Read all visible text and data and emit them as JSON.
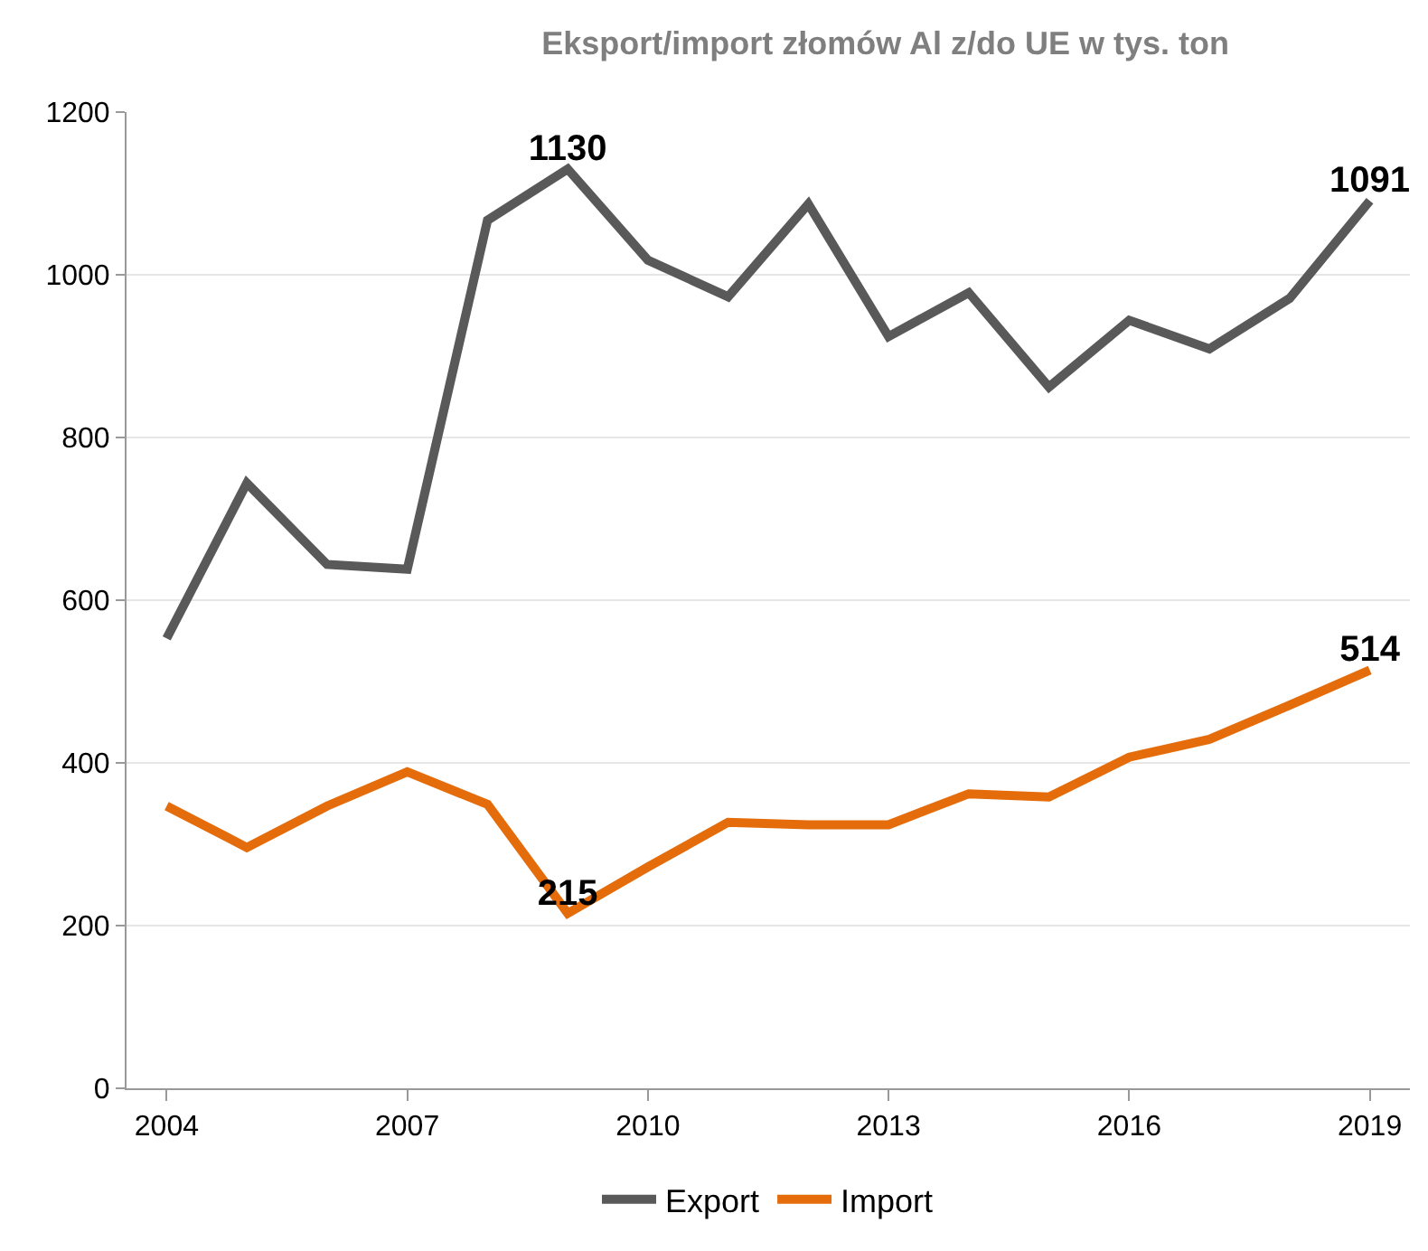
{
  "chart_data": {
    "type": "line",
    "title": "Eksport/import złomów Al z/do UE w tys. ton",
    "x": [
      2004,
      2005,
      2006,
      2007,
      2008,
      2009,
      2010,
      2011,
      2012,
      2013,
      2014,
      2015,
      2016,
      2017,
      2018,
      2019
    ],
    "series": [
      {
        "name": "Export",
        "color": "#595959",
        "values": [
          553,
          744,
          644,
          638,
          1067,
          1130,
          1018,
          973,
          1087,
          924,
          978,
          862,
          944,
          909,
          971,
          1091
        ],
        "value_labels": [
          null,
          null,
          null,
          null,
          null,
          "1130",
          null,
          null,
          null,
          null,
          null,
          null,
          null,
          null,
          null,
          "1091"
        ]
      },
      {
        "name": "Import",
        "color": "#e46c0a",
        "values": [
          347,
          296,
          347,
          389,
          349,
          215,
          272,
          327,
          324,
          324,
          362,
          358,
          407,
          429,
          471,
          514
        ],
        "value_labels": [
          null,
          null,
          null,
          null,
          null,
          "215",
          null,
          null,
          null,
          null,
          null,
          null,
          null,
          null,
          null,
          "514"
        ]
      }
    ],
    "xlim": [
      2003.5,
      2019.5
    ],
    "xticks": [
      2004,
      2007,
      2010,
      2013,
      2016,
      2019
    ],
    "ylim": [
      0,
      1200
    ],
    "yticks": [
      0,
      200,
      400,
      600,
      800,
      1000,
      1200
    ],
    "grid": "y",
    "legend": "bottom",
    "marker": "none",
    "line_style": "solid"
  }
}
